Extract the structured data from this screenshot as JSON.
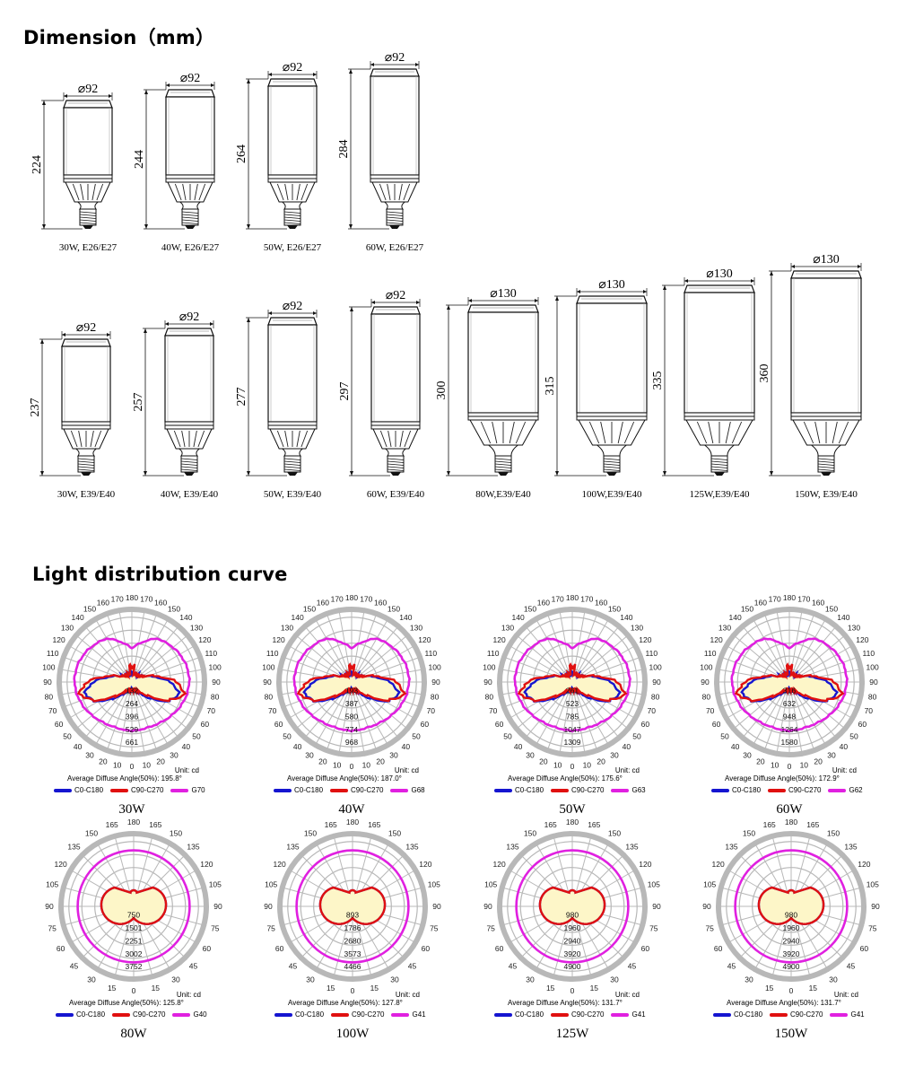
{
  "section_titles": {
    "dimension": "Dimension（mm）",
    "light": "Light distribution curve"
  },
  "dimension_rows": [
    [
      {
        "dia": "⌀92",
        "height": "224",
        "caption": "30W, E26/E27"
      },
      {
        "dia": "⌀92",
        "height": "244",
        "caption": "40W, E26/E27"
      },
      {
        "dia": "⌀92",
        "height": "264",
        "caption": "50W, E26/E27"
      },
      {
        "dia": "⌀92",
        "height": "284",
        "caption": "60W, E26/E27"
      }
    ],
    [
      {
        "dia": "⌀92",
        "height": "237",
        "caption": "30W, E39/E40"
      },
      {
        "dia": "⌀92",
        "height": "257",
        "caption": "40W, E39/E40"
      },
      {
        "dia": "⌀92",
        "height": "277",
        "caption": "50W, E39/E40"
      },
      {
        "dia": "⌀92",
        "height": "297",
        "caption": "60W, E39/E40"
      },
      {
        "dia": "⌀130",
        "height": "300",
        "caption": "80W,E39/E40"
      },
      {
        "dia": "⌀130",
        "height": "315",
        "caption": "100W,E39/E40"
      },
      {
        "dia": "⌀130",
        "height": "335",
        "caption": "125W,E39/E40"
      },
      {
        "dia": "⌀130",
        "height": "360",
        "caption": "150W, E39/E40"
      }
    ]
  ],
  "polar_charts": [
    {
      "watt": "30W",
      "angles": [
        "180",
        "170",
        "160",
        "150",
        "140",
        "130",
        "120",
        "110",
        "100",
        "90",
        "80",
        "70",
        "60",
        "50",
        "40",
        "30",
        "20",
        "10",
        "0"
      ],
      "rings": [
        "132",
        "264",
        "396",
        "529",
        "661"
      ],
      "avg": "Average Diffuse Angle(50%): 195.8°",
      "g": "G70",
      "style": "wide"
    },
    {
      "watt": "40W",
      "angles": [
        "180",
        "170",
        "160",
        "150",
        "140",
        "130",
        "120",
        "110",
        "100",
        "90",
        "80",
        "70",
        "60",
        "50",
        "40",
        "30",
        "20",
        "10",
        "0"
      ],
      "rings": [
        "193",
        "387",
        "580",
        "774",
        "968"
      ],
      "avg": "Average Diffuse Angle(50%): 187.0°",
      "g": "G68",
      "style": "wide"
    },
    {
      "watt": "50W",
      "angles": [
        "180",
        "170",
        "160",
        "150",
        "140",
        "130",
        "120",
        "110",
        "100",
        "90",
        "80",
        "70",
        "60",
        "50",
        "40",
        "30",
        "20",
        "10",
        "0"
      ],
      "rings": [
        "261",
        "523",
        "785",
        "1047",
        "1309"
      ],
      "avg": "Average Diffuse Angle(50%): 175.6°",
      "g": "G63",
      "style": "wide"
    },
    {
      "watt": "60W",
      "angles": [
        "180",
        "170",
        "160",
        "150",
        "140",
        "130",
        "120",
        "110",
        "100",
        "90",
        "80",
        "70",
        "60",
        "50",
        "40",
        "30",
        "20",
        "10",
        "0"
      ],
      "rings": [
        "316",
        "632",
        "948",
        "1264",
        "1580"
      ],
      "avg": "Average Diffuse Angle(50%): 172.9°",
      "g": "G62",
      "style": "wide"
    },
    {
      "watt": "80W",
      "angles": [
        "180",
        "165",
        "150",
        "135",
        "120",
        "105",
        "90",
        "75",
        "60",
        "45",
        "30",
        "15",
        "0"
      ],
      "rings": [
        "750",
        "1501",
        "2251",
        "3002",
        "3752"
      ],
      "avg": "Average Diffuse Angle(50%): 125.8°",
      "g": "G40",
      "style": "narrow"
    },
    {
      "watt": "100W",
      "angles": [
        "180",
        "165",
        "150",
        "135",
        "120",
        "105",
        "90",
        "75",
        "60",
        "45",
        "30",
        "15",
        "0"
      ],
      "rings": [
        "893",
        "1786",
        "2680",
        "3573",
        "4466"
      ],
      "avg": "Average Diffuse Angle(50%): 127.8°",
      "g": "G41",
      "style": "narrow"
    },
    {
      "watt": "125W",
      "angles": [
        "180",
        "165",
        "150",
        "135",
        "120",
        "105",
        "90",
        "75",
        "60",
        "45",
        "30",
        "15",
        "0"
      ],
      "rings": [
        "980",
        "1960",
        "2940",
        "3920",
        "4900"
      ],
      "avg": "Average Diffuse Angle(50%): 131.7°",
      "g": "G41",
      "style": "narrow"
    },
    {
      "watt": "150W",
      "angles": [
        "180",
        "165",
        "150",
        "135",
        "120",
        "105",
        "90",
        "75",
        "60",
        "45",
        "30",
        "15",
        "0"
      ],
      "rings": [
        "980",
        "1960",
        "2940",
        "3920",
        "4900"
      ],
      "avg": "Average Diffuse Angle(50%): 131.7°",
      "g": "G41",
      "style": "narrow"
    }
  ],
  "chart_legend": {
    "unit": "Unit: cd",
    "c0": "C0-C180",
    "c90": "C90-C270"
  },
  "colors": {
    "c0": "#1515d0",
    "c90": "#e01010",
    "g": "#e020e0",
    "fill": "#fdf6c8",
    "grid": "#b8b8b8"
  }
}
